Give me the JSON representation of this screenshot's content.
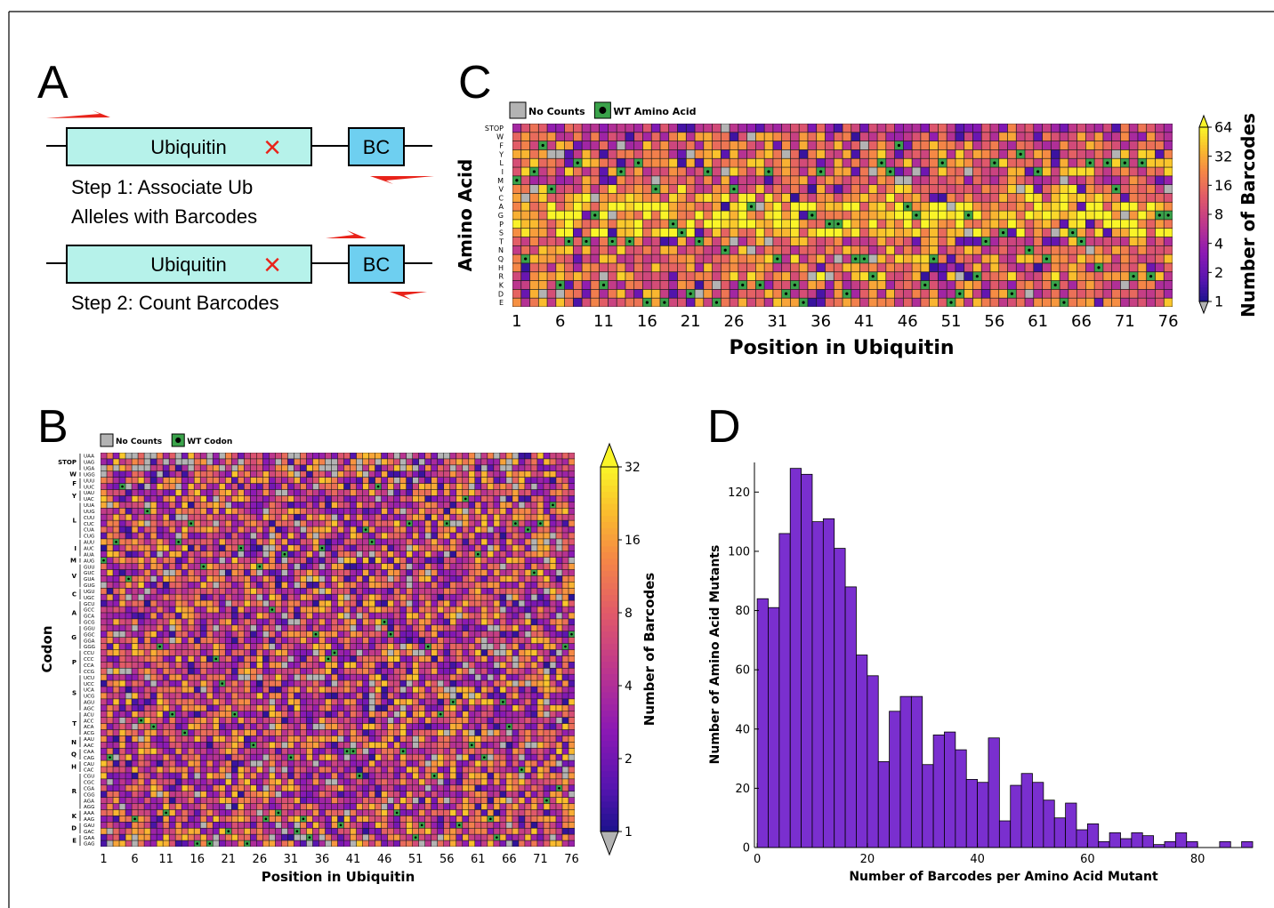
{
  "panels": {
    "a": {
      "letter": "A",
      "gene_label": "Ubiquitin",
      "bc_label": "BC",
      "mutation_mark": "×",
      "step1_line1": "Step 1: Associate Ub",
      "step1_line2": "Alleles with Barcodes",
      "step2": "Step 2: Count Barcodes"
    },
    "b": {
      "letter": "B"
    },
    "c": {
      "letter": "C"
    },
    "d": {
      "letter": "D"
    }
  },
  "colors": {
    "gene_fill": "#b6f2ea",
    "bc_fill": "#6ecff0",
    "primer": "#e8231a",
    "mutation": "#e8231a",
    "no_counts": "#b3b3b3",
    "wt_marker": "#3aa24a",
    "hist_bar": "#7a2fcf"
  },
  "chart_data": [
    {
      "type": "heatmap",
      "panel": "B",
      "xlabel": "Position in Ubiquitin",
      "ylabel": "Codon",
      "x_ticks": [
        1,
        6,
        11,
        16,
        21,
        26,
        31,
        36,
        41,
        46,
        51,
        56,
        61,
        66,
        71,
        76
      ],
      "columns": 76,
      "legend": [
        {
          "kind": "no_counts",
          "label": "No Counts"
        },
        {
          "kind": "wt",
          "label": "WT Codon"
        }
      ],
      "colorbar": {
        "label": "Number of Barcodes",
        "ticks": [
          1,
          2,
          4,
          8,
          16,
          32
        ],
        "scale": "log2",
        "range": [
          1,
          32
        ]
      },
      "row_groups": [
        {
          "aa": "STOP",
          "codons": [
            "UAA",
            "UAG",
            "UGA"
          ]
        },
        {
          "aa": "W",
          "codons": [
            "UGG"
          ]
        },
        {
          "aa": "F",
          "codons": [
            "UUU",
            "UUC"
          ]
        },
        {
          "aa": "Y",
          "codons": [
            "UAU",
            "UAC"
          ]
        },
        {
          "aa": "L",
          "codons": [
            "UUA",
            "UUG",
            "CUU",
            "CUC",
            "CUA",
            "CUG"
          ]
        },
        {
          "aa": "I",
          "codons": [
            "AUU",
            "AUC",
            "AUA"
          ]
        },
        {
          "aa": "M",
          "codons": [
            "AUG"
          ]
        },
        {
          "aa": "V",
          "codons": [
            "GUU",
            "GUC",
            "GUA",
            "GUG"
          ]
        },
        {
          "aa": "C",
          "codons": [
            "UGU",
            "UGC"
          ]
        },
        {
          "aa": "A",
          "codons": [
            "GCU",
            "GCC",
            "GCA",
            "GCG"
          ]
        },
        {
          "aa": "G",
          "codons": [
            "GGU",
            "GGC",
            "GGA",
            "GGG"
          ]
        },
        {
          "aa": "P",
          "codons": [
            "CCU",
            "CCC",
            "CCA",
            "CCG"
          ]
        },
        {
          "aa": "S",
          "codons": [
            "UCU",
            "UCC",
            "UCA",
            "UCG",
            "AGU",
            "AGC"
          ]
        },
        {
          "aa": "T",
          "codons": [
            "ACU",
            "ACC",
            "ACA",
            "ACG"
          ]
        },
        {
          "aa": "N",
          "codons": [
            "AAU",
            "AAC"
          ]
        },
        {
          "aa": "Q",
          "codons": [
            "CAA",
            "CAG"
          ]
        },
        {
          "aa": "H",
          "codons": [
            "CAU",
            "CAC"
          ]
        },
        {
          "aa": "R",
          "codons": [
            "CGU",
            "CGC",
            "CGA",
            "CGG",
            "AGA",
            "AGG"
          ]
        },
        {
          "aa": "K",
          "codons": [
            "AAA",
            "AAG"
          ]
        },
        {
          "aa": "D",
          "codons": [
            "GAU",
            "GAC"
          ]
        },
        {
          "aa": "E",
          "codons": [
            "GAA",
            "GAG"
          ]
        }
      ]
    },
    {
      "type": "heatmap",
      "panel": "C",
      "xlabel": "Position in Ubiquitin",
      "ylabel": "Amino Acid",
      "rows": [
        "STOP",
        "W",
        "F",
        "Y",
        "L",
        "I",
        "M",
        "V",
        "C",
        "A",
        "G",
        "P",
        "S",
        "T",
        "N",
        "Q",
        "H",
        "R",
        "K",
        "D",
        "E"
      ],
      "x_ticks": [
        1,
        6,
        11,
        16,
        21,
        26,
        31,
        36,
        41,
        46,
        51,
        56,
        61,
        66,
        71,
        76
      ],
      "columns": 76,
      "legend": [
        {
          "kind": "no_counts",
          "label": "No Counts"
        },
        {
          "kind": "wt",
          "label": "WT Amino Acid"
        }
      ],
      "colorbar": {
        "label": "Number of Barcodes",
        "ticks": [
          1,
          2,
          4,
          8,
          16,
          32,
          64
        ],
        "scale": "log2",
        "range": [
          1,
          64
        ]
      },
      "wt_sequence": "MQIFVKTLTGKTITLEVEPSDTIENVKAKIQDKEGIPPDQQRLIFAGKQLEDGRTLSDYNIQKESTLHLVLRLRGG"
    },
    {
      "type": "bar",
      "panel": "D",
      "xlabel": "Number of Barcodes per Amino Acid Mutant",
      "ylabel": "Number of Amino Acid Mutants",
      "bin_width": 2,
      "bin_start": 0,
      "values": [
        84,
        81,
        106,
        128,
        126,
        110,
        111,
        101,
        88,
        65,
        58,
        29,
        46,
        51,
        51,
        28,
        38,
        39,
        33,
        23,
        22,
        37,
        9,
        21,
        25,
        22,
        16,
        10,
        15,
        6,
        8,
        2,
        5,
        3,
        5,
        4,
        1,
        2,
        5,
        2,
        0,
        0,
        2,
        0,
        2
      ],
      "xlim": [
        -0.5,
        90
      ],
      "ylim": [
        0,
        130
      ],
      "x_ticks": [
        0,
        20,
        40,
        60,
        80
      ],
      "y_ticks": [
        0,
        20,
        40,
        60,
        80,
        100,
        120
      ]
    }
  ]
}
